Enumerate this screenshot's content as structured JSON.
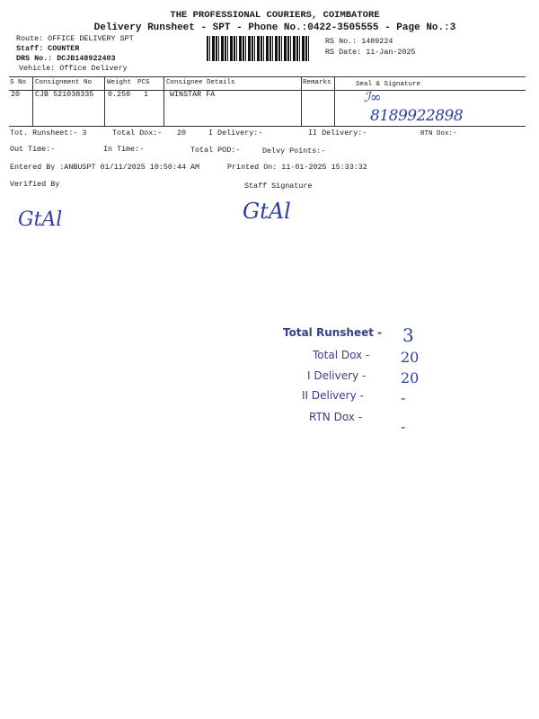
{
  "header": {
    "company": "THE PROFESSIONAL COURIERS, COIMBATORE",
    "subtitle": "Delivery Runsheet - SPT - Phone No.:0422-3505555 - Page No.:3"
  },
  "info": {
    "route": "Route: OFFICE DELIVERY SPT",
    "staff": "Staff: COUNTER",
    "drs": "DRS No.: DCJB148922403",
    "vehicle": "Vehicle: Office Delivery",
    "rs_no": "RS No.: 1489224",
    "rs_date": "RS Date: 11-Jan-2025"
  },
  "table": {
    "headers": [
      "S No",
      "Consignment No",
      "Weight",
      "PCS",
      "Consignee Details",
      "Remarks",
      "Seal & Signature"
    ],
    "rows": [
      {
        "sno": "20",
        "consignment": "CJB 521038335",
        "weight": "0.250",
        "pcs": "1",
        "consignee": "WINSTAR FA",
        "remarks": "",
        "signature_phone": "8189922898"
      }
    ]
  },
  "totals": {
    "runsheet": "Tot. Runsheet:- 3",
    "total_dox": "Total Dox:-",
    "total_dox_val": "20",
    "i_delivery": "I Delivery:-",
    "ii_delivery": "II Delivery:-",
    "rtn_dox": "RTN Dox:-",
    "out_time": "Out Time:-",
    "in_time": "In Time:-",
    "total_pod": "Total POD:-",
    "delvy_points": "Delvy Points:-"
  },
  "footer": {
    "entered_by": "Entered By :ANBUSPT 01/11/2025 10:50:44 AM",
    "printed_on": "Printed On: 11-01-2025 15:33:32",
    "verified_by": "Verified By",
    "staff_signature": "Staff Signature"
  },
  "stamp": {
    "labels": [
      "Total Runsheet -",
      "Total Dox -",
      "I Delivery -",
      "II Delivery -",
      "RTN Dox -"
    ],
    "values": [
      "3",
      "20",
      "20",
      "-",
      "-"
    ]
  },
  "colors": {
    "ink": "#2b3f9e",
    "stamp": "#3a3f8a"
  }
}
